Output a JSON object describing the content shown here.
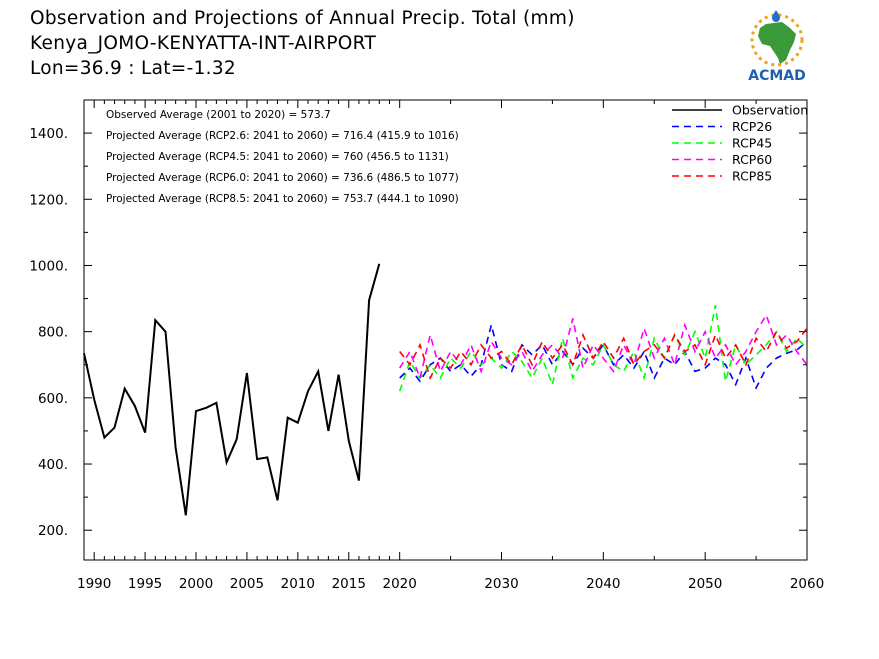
{
  "header": {
    "title_line1": "Observation and Projections of Annual Precip. Total (mm)",
    "title_line2": "Kenya_JOMO-KENYATTA-INT-AIRPORT",
    "title_line3": "Lon=36.9 : Lat=-1.32",
    "logo_text": "ACMAD"
  },
  "chart_data": {
    "type": "line",
    "title": "Observation and Projections of Annual Precip. Total (mm)",
    "xlim": [
      1989,
      2060
    ],
    "ylim": [
      110,
      1500
    ],
    "yticks": [
      200,
      400,
      600,
      800,
      1000,
      1200,
      1400
    ],
    "ytick_labels": [
      "200.",
      "400.",
      "600.",
      "800.",
      "1000.",
      "1200.",
      "1400."
    ],
    "xticks": [
      1990,
      1995,
      2000,
      2005,
      2010,
      2015,
      2020,
      2030,
      2040,
      2050,
      2060
    ],
    "xtick_labels": [
      "1990",
      "1995",
      "2000",
      "2005",
      "2010",
      "2015",
      "2020",
      "2030",
      "2040",
      "2050",
      "2060"
    ],
    "annotations": [
      "Observed Average (2001 to 2020) = 573.7",
      "Projected Average (RCP2.6: 2041 to 2060) = 716.4 (415.9 to 1016)",
      "Projected Average (RCP4.5: 2041 to 2060) = 760 (456.5 to 1131)",
      "Projected Average (RCP6.0: 2041 to 2060) = 736.6 (486.5 to 1077)",
      "Projected Average (RCP8.5: 2041 to 2060) = 753.7 (444.1 to 1090)"
    ],
    "legend_position": "top-right",
    "series": [
      {
        "name": "Observation",
        "color": "#000000",
        "dashed": false,
        "x": [
          1989,
          1990,
          1991,
          1992,
          1993,
          1994,
          1995,
          1996,
          1997,
          1998,
          1999,
          2000,
          2001,
          2002,
          2003,
          2004,
          2005,
          2006,
          2007,
          2008,
          2009,
          2010,
          2011,
          2012,
          2013,
          2014,
          2015,
          2016,
          2017,
          2018,
          2019
        ],
        "y": [
          735,
          595,
          480,
          510,
          628,
          575,
          495,
          835,
          800,
          450,
          245,
          560,
          570,
          585,
          405,
          475,
          675,
          415,
          420,
          290,
          540,
          525,
          620,
          680,
          500,
          670,
          470,
          350,
          895,
          1005,
          null
        ]
      },
      {
        "name": "RCP26",
        "color": "#0000ff",
        "dashed": true,
        "x": [
          2020,
          2021,
          2022,
          2023,
          2024,
          2025,
          2026,
          2027,
          2028,
          2029,
          2030,
          2031,
          2032,
          2033,
          2034,
          2035,
          2036,
          2037,
          2038,
          2039,
          2040,
          2041,
          2042,
          2043,
          2044,
          2045,
          2046,
          2047,
          2048,
          2049,
          2050,
          2051,
          2052,
          2053,
          2054,
          2055,
          2056,
          2057,
          2058,
          2059,
          2060
        ],
        "y": [
          660,
          690,
          650,
          700,
          720,
          680,
          700,
          665,
          700,
          820,
          700,
          680,
          760,
          730,
          760,
          700,
          740,
          700,
          750,
          720,
          760,
          700,
          730,
          690,
          740,
          660,
          720,
          700,
          740,
          680,
          690,
          720,
          700,
          640,
          720,
          630,
          690,
          720,
          735,
          745,
          770
        ]
      },
      {
        "name": "RCP45",
        "color": "#00ff00",
        "dashed": true,
        "x": [
          2020,
          2021,
          2022,
          2023,
          2024,
          2025,
          2026,
          2027,
          2028,
          2029,
          2030,
          2031,
          2032,
          2033,
          2034,
          2035,
          2036,
          2037,
          2038,
          2039,
          2040,
          2041,
          2042,
          2043,
          2044,
          2045,
          2046,
          2047,
          2048,
          2049,
          2050,
          2051,
          2052,
          2053,
          2054,
          2055,
          2056,
          2057,
          2058,
          2059,
          2060
        ],
        "y": [
          620,
          710,
          660,
          700,
          660,
          720,
          690,
          740,
          700,
          720,
          690,
          740,
          710,
          660,
          720,
          640,
          780,
          660,
          720,
          700,
          760,
          700,
          680,
          740,
          660,
          780,
          720,
          790,
          730,
          800,
          720,
          880,
          650,
          760,
          700,
          730,
          760,
          800,
          740,
          780,
          750
        ]
      },
      {
        "name": "RCP60",
        "color": "#ff00ff",
        "dashed": true,
        "x": [
          2020,
          2021,
          2022,
          2023,
          2024,
          2025,
          2026,
          2027,
          2028,
          2029,
          2030,
          2031,
          2032,
          2033,
          2034,
          2035,
          2036,
          2037,
          2038,
          2039,
          2040,
          2041,
          2042,
          2043,
          2044,
          2045,
          2046,
          2047,
          2048,
          2049,
          2050,
          2051,
          2052,
          2053,
          2054,
          2055,
          2056,
          2057,
          2058,
          2059,
          2060
        ],
        "y": [
          690,
          740,
          660,
          790,
          680,
          740,
          700,
          760,
          680,
          770,
          720,
          700,
          740,
          680,
          730,
          760,
          720,
          840,
          690,
          760,
          720,
          680,
          760,
          700,
          810,
          720,
          780,
          700,
          820,
          740,
          800,
          720,
          760,
          700,
          740,
          800,
          850,
          760,
          790,
          740,
          700
        ]
      },
      {
        "name": "RCP85",
        "color": "#ff0000",
        "dashed": true,
        "x": [
          2020,
          2021,
          2022,
          2023,
          2024,
          2025,
          2026,
          2027,
          2028,
          2029,
          2030,
          2031,
          2032,
          2033,
          2034,
          2035,
          2036,
          2037,
          2038,
          2039,
          2040,
          2041,
          2042,
          2043,
          2044,
          2045,
          2046,
          2047,
          2048,
          2049,
          2050,
          2051,
          2052,
          2053,
          2054,
          2055,
          2056,
          2057,
          2058,
          2059,
          2060
        ],
        "y": [
          740,
          700,
          760,
          660,
          720,
          690,
          740,
          700,
          760,
          720,
          740,
          700,
          760,
          700,
          770,
          720,
          760,
          700,
          790,
          720,
          770,
          720,
          780,
          700,
          740,
          760,
          720,
          790,
          740,
          760,
          700,
          790,
          720,
          760,
          700,
          780,
          740,
          800,
          750,
          770,
          810
        ]
      }
    ]
  }
}
